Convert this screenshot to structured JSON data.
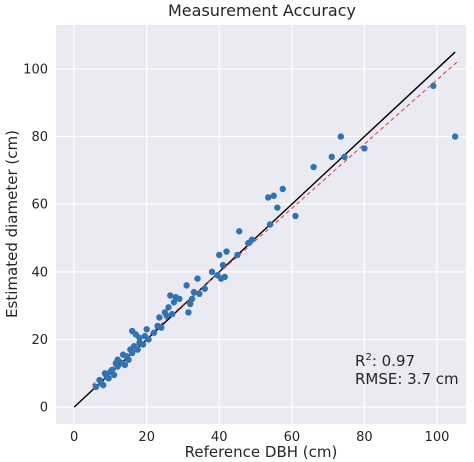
{
  "chart_data": {
    "type": "scatter",
    "title": "Measurement Accuracy",
    "xlabel": "Reference DBH (cm)",
    "ylabel": "Estimated diameter (cm)",
    "xlim": [
      -5,
      108
    ],
    "ylim": [
      -5,
      113
    ],
    "xticks": [
      0,
      20,
      40,
      60,
      80,
      100
    ],
    "yticks": [
      0,
      20,
      40,
      60,
      80,
      100
    ],
    "grid": true,
    "background": "#eaeaf2",
    "point_color": "#3072b2",
    "identity_line": {
      "x": [
        0,
        105
      ],
      "y": [
        0,
        105
      ],
      "color": "#000000"
    },
    "fit_line": {
      "x": [
        5,
        106
      ],
      "y": [
        6.5,
        102.5
      ],
      "color": "#e05050"
    },
    "annotations": {
      "r2_label": "R",
      "r2_sup": "2",
      "r2_value": ": 0.97",
      "rmse": "RMSE: 3.7 cm"
    },
    "points": [
      [
        6,
        6
      ],
      [
        7,
        8
      ],
      [
        7.5,
        7
      ],
      [
        8,
        6.5
      ],
      [
        8.5,
        10
      ],
      [
        9,
        9
      ],
      [
        9.5,
        8.5
      ],
      [
        10,
        10.5
      ],
      [
        10.5,
        11
      ],
      [
        11,
        9.5
      ],
      [
        11.5,
        13
      ],
      [
        12,
        12
      ],
      [
        12,
        14
      ],
      [
        13,
        13
      ],
      [
        13.5,
        15.5
      ],
      [
        14,
        12.5
      ],
      [
        14.5,
        15
      ],
      [
        15,
        14
      ],
      [
        15.5,
        17
      ],
      [
        16,
        16
      ],
      [
        16,
        22.5
      ],
      [
        16.5,
        18
      ],
      [
        17,
        21.5
      ],
      [
        17.5,
        17
      ],
      [
        18,
        19
      ],
      [
        18,
        20.5
      ],
      [
        19,
        18.5
      ],
      [
        19.5,
        21
      ],
      [
        20,
        23
      ],
      [
        20.5,
        20
      ],
      [
        22,
        22
      ],
      [
        23,
        24
      ],
      [
        23.5,
        26.5
      ],
      [
        24,
        23.5
      ],
      [
        25,
        28
      ],
      [
        25.5,
        27
      ],
      [
        26,
        29.5
      ],
      [
        26.5,
        33
      ],
      [
        27,
        27.5
      ],
      [
        27.5,
        31
      ],
      [
        28,
        32.5
      ],
      [
        29,
        32
      ],
      [
        31,
        36
      ],
      [
        31.5,
        28
      ],
      [
        32,
        30.5
      ],
      [
        32.5,
        32
      ],
      [
        33,
        34
      ],
      [
        34,
        38
      ],
      [
        34.5,
        33.5
      ],
      [
        36,
        35
      ],
      [
        38,
        40
      ],
      [
        39.5,
        39
      ],
      [
        40,
        45
      ],
      [
        40.5,
        38
      ],
      [
        41,
        42
      ],
      [
        42,
        46
      ],
      [
        41.5,
        38.5
      ],
      [
        45,
        45
      ],
      [
        45.5,
        52
      ],
      [
        48,
        48.5
      ],
      [
        49,
        49.5
      ],
      [
        53.5,
        62
      ],
      [
        54,
        54
      ],
      [
        55,
        62.5
      ],
      [
        56,
        59
      ],
      [
        57.5,
        64.5
      ],
      [
        61,
        56.5
      ],
      [
        66,
        71
      ],
      [
        71,
        74
      ],
      [
        73.5,
        80
      ],
      [
        74.5,
        74
      ],
      [
        80,
        76.5
      ],
      [
        99,
        95
      ],
      [
        105,
        80
      ]
    ]
  }
}
